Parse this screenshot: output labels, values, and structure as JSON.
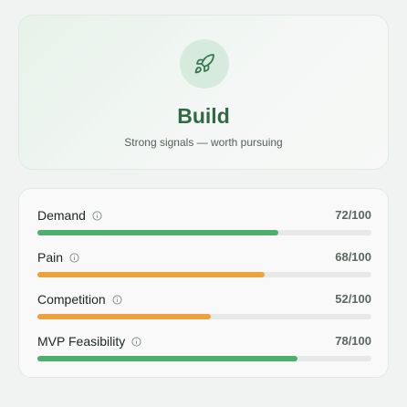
{
  "verdict": {
    "icon": "rocket-icon",
    "title": "Build",
    "subtitle": "Strong signals — worth pursuing",
    "accent_color": "#2f6a45"
  },
  "metrics": [
    {
      "name": "Demand",
      "score_text": "72/100",
      "score": 72,
      "max": 100,
      "bar_color": "#4caf6e"
    },
    {
      "name": "Pain",
      "score_text": "68/100",
      "score": 68,
      "max": 100,
      "bar_color": "#efa13c"
    },
    {
      "name": "Competition",
      "score_text": "52/100",
      "score": 52,
      "max": 100,
      "bar_color": "#efa13c"
    },
    {
      "name": "MVP Feasibility",
      "score_text": "78/100",
      "score": 78,
      "max": 100,
      "bar_color": "#4caf6e"
    }
  ]
}
